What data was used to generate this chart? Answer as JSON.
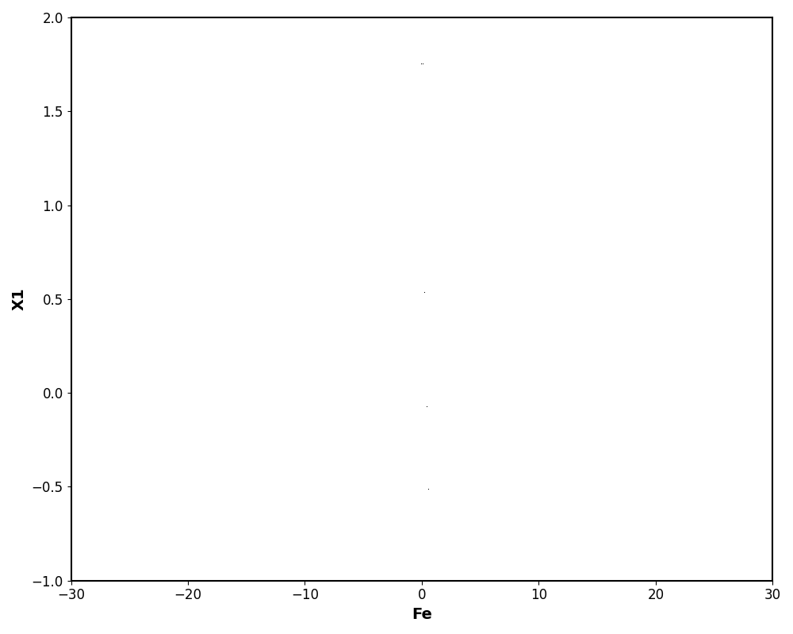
{
  "xlabel": "Fe",
  "ylabel": "X1",
  "xlim": [
    -30,
    30
  ],
  "ylim": [
    -1,
    2
  ],
  "xticks": [
    -30,
    -20,
    -10,
    0,
    10,
    20,
    30
  ],
  "yticks": [
    -1,
    -0.5,
    0,
    0.5,
    1,
    1.5,
    2
  ],
  "xlabel_fontsize": 14,
  "ylabel_fontsize": 14,
  "tick_fontsize": 12,
  "bg_color": "white",
  "fe_start": -30,
  "fe_end": 30,
  "fe_steps": 400,
  "zeta": 0.05,
  "omega": 1.0,
  "fm": 1.25,
  "b": 0.5,
  "k": 1.0,
  "transient_periods": 150,
  "record_periods": 50,
  "steps_per_period": 64
}
